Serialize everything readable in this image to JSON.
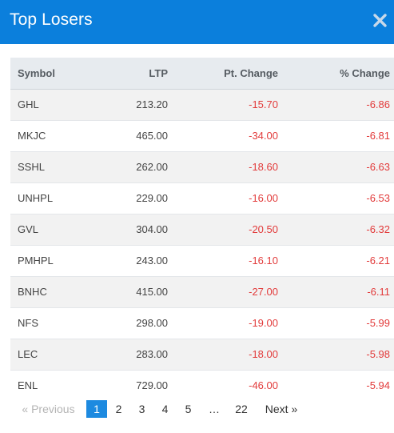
{
  "modal": {
    "title": "Top Losers",
    "close_icon": "close-icon",
    "header_color": "#0b7fdc"
  },
  "table": {
    "columns": [
      "Symbol",
      "LTP",
      "Pt. Change",
      "% Change"
    ],
    "rows": [
      {
        "symbol": "GHL",
        "ltp": "213.20",
        "pt_change": "-15.70",
        "pct_change": "-6.86"
      },
      {
        "symbol": "MKJC",
        "ltp": "465.00",
        "pt_change": "-34.00",
        "pct_change": "-6.81"
      },
      {
        "symbol": "SSHL",
        "ltp": "262.00",
        "pt_change": "-18.60",
        "pct_change": "-6.63"
      },
      {
        "symbol": "UNHPL",
        "ltp": "229.00",
        "pt_change": "-16.00",
        "pct_change": "-6.53"
      },
      {
        "symbol": "GVL",
        "ltp": "304.00",
        "pt_change": "-20.50",
        "pct_change": "-6.32"
      },
      {
        "symbol": "PMHPL",
        "ltp": "243.00",
        "pt_change": "-16.10",
        "pct_change": "-6.21"
      },
      {
        "symbol": "BNHC",
        "ltp": "415.00",
        "pt_change": "-27.00",
        "pct_change": "-6.11"
      },
      {
        "symbol": "NFS",
        "ltp": "298.00",
        "pt_change": "-19.00",
        "pct_change": "-5.99"
      },
      {
        "symbol": "LEC",
        "ltp": "283.00",
        "pt_change": "-18.00",
        "pct_change": "-5.98"
      },
      {
        "symbol": "ENL",
        "ltp": "729.00",
        "pt_change": "-46.00",
        "pct_change": "-5.94"
      }
    ],
    "negative_color": "#e23b3b"
  },
  "pagination": {
    "previous": "«  Previous",
    "pages": [
      "1",
      "2",
      "3",
      "4",
      "5"
    ],
    "ellipsis": "…",
    "last_page": "22",
    "next": "Next  »",
    "current": "1",
    "active_color": "#1d8ae0"
  }
}
